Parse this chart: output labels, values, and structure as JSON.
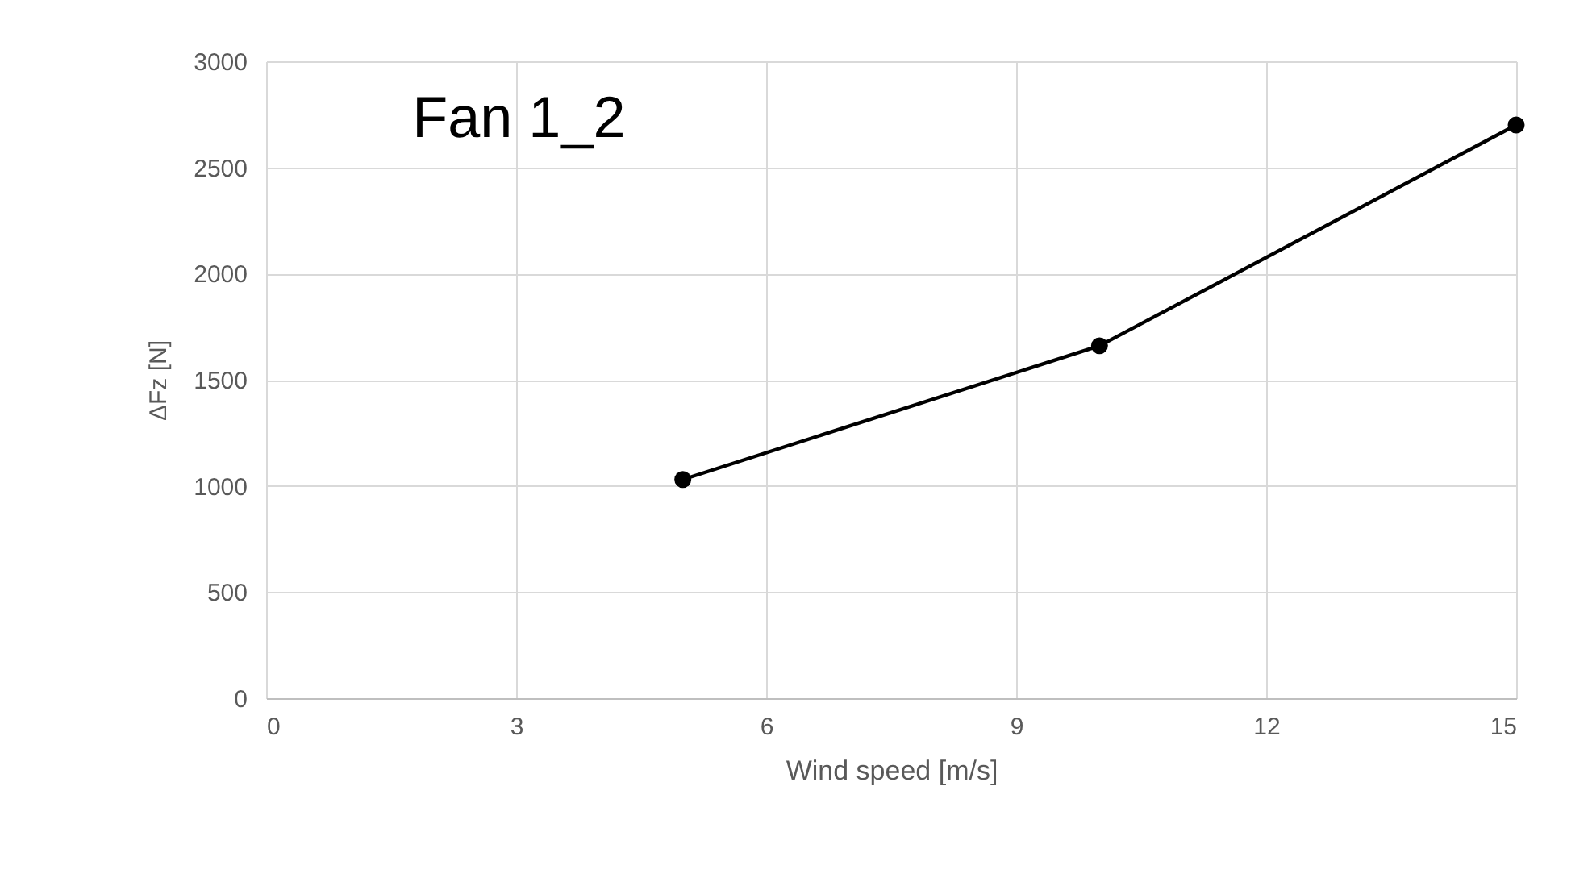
{
  "chart_data": {
    "type": "line",
    "title": "Fan 1_2",
    "xlabel": "Wind speed [m/s]",
    "ylabel": "ΔFz [N]",
    "x": [
      5,
      10,
      15
    ],
    "series": [
      {
        "color": "#000000",
        "values": [
          1030,
          1660,
          2700
        ]
      }
    ],
    "xlim": [
      0,
      15
    ],
    "xticks": [
      0,
      3,
      6,
      9,
      12,
      15
    ],
    "ylim": [
      0,
      3000
    ],
    "yticks": [
      0,
      500,
      1000,
      1500,
      2000,
      2500,
      3000
    ],
    "grid": true,
    "marker": "circle",
    "line_style": "solid"
  }
}
